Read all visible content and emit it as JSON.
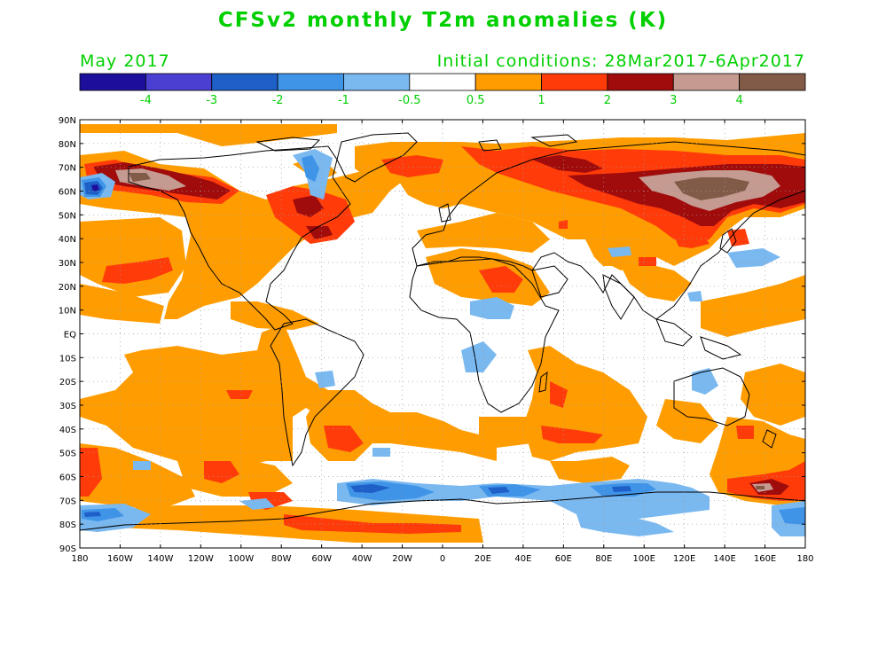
{
  "header": {
    "title": "CFSv2 monthly T2m anomalies (K)",
    "valid_month": "May 2017",
    "initial_conditions": "Initial conditions: 28Mar2017-6Apr2017",
    "text_color": "#00d000"
  },
  "colorbar": {
    "colors": [
      "#1c0f9c",
      "#4a3fd0",
      "#1f5fc8",
      "#3f94e8",
      "#7ab8f0",
      "#ffffff",
      "#ff9d00",
      "#ff3b0a",
      "#a00c0c",
      "#c59a90",
      "#825a48"
    ],
    "labels": [
      "-4",
      "-3",
      "-2",
      "-1",
      "-0.5",
      "0.5",
      "1",
      "2",
      "3",
      "4"
    ]
  },
  "axes": {
    "lat_labels": [
      "90N",
      "80N",
      "70N",
      "60N",
      "50N",
      "40N",
      "30N",
      "20N",
      "10N",
      "EQ",
      "10S",
      "20S",
      "30S",
      "40S",
      "50S",
      "60S",
      "70S",
      "80S",
      "90S"
    ],
    "lon_labels": [
      "180",
      "160W",
      "140W",
      "120W",
      "100W",
      "80W",
      "60W",
      "40W",
      "20W",
      "0",
      "20E",
      "40E",
      "60E",
      "80E",
      "100E",
      "120E",
      "140E",
      "160E",
      "180"
    ]
  },
  "map_colors": {
    "warm_05": "#ff9d00",
    "warm_1": "#ff3b0a",
    "warm_2": "#a00c0c",
    "warm_3": "#c59a90",
    "warm_4": "#825a48",
    "cool_05": "#7ab8f0",
    "cool_1": "#3f94e8",
    "cool_2": "#1f5fc8",
    "cool_3": "#1c0f9c",
    "coast": "#000000"
  }
}
